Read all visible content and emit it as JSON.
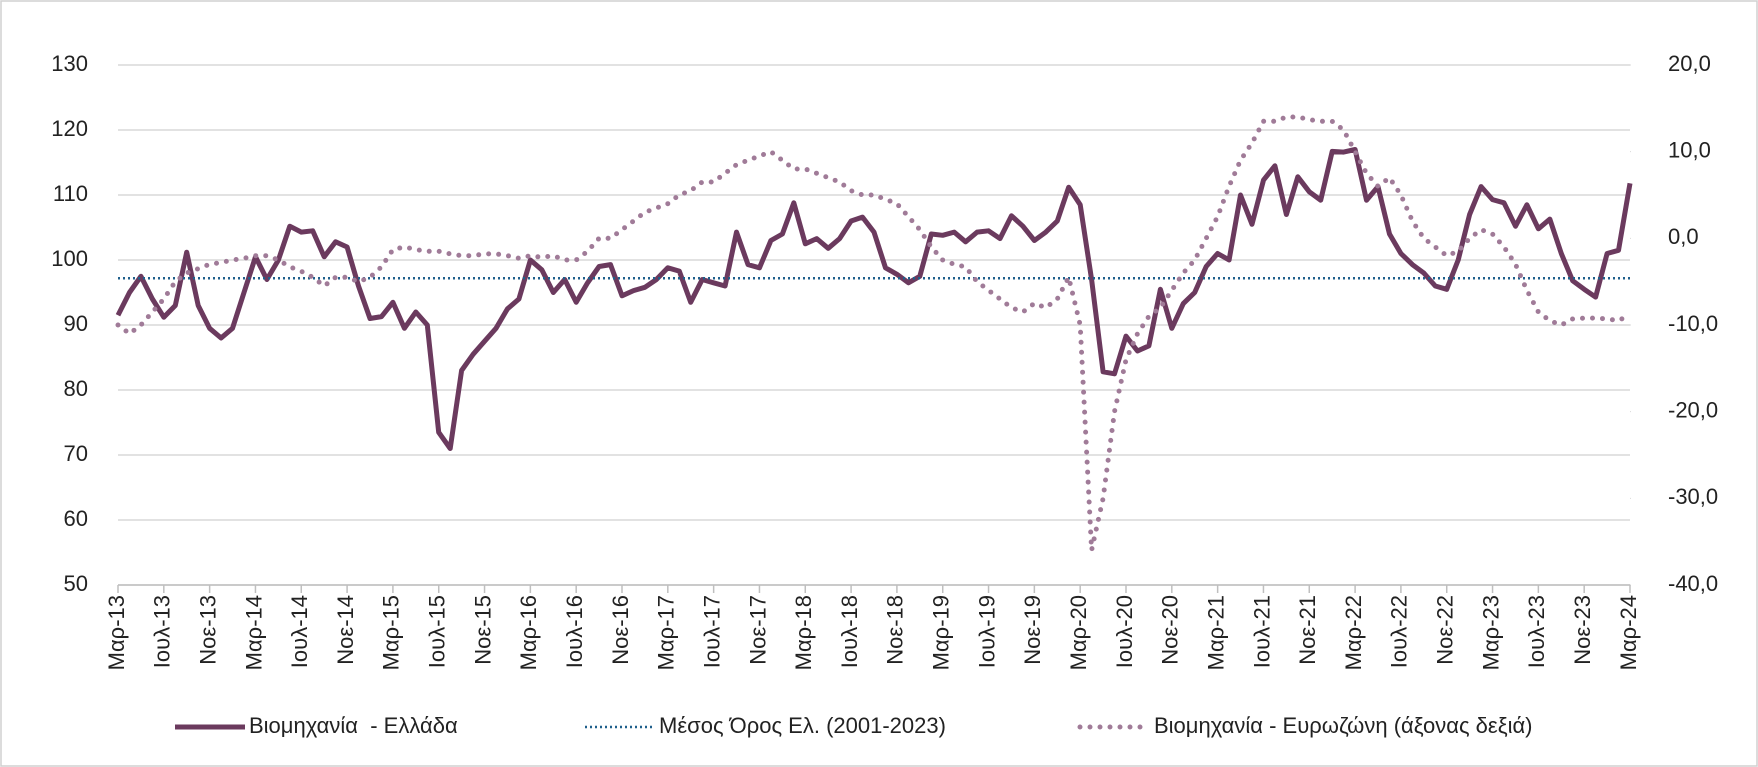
{
  "chart_data": {
    "type": "line",
    "categories": [
      "Μαρ-13",
      null,
      null,
      null,
      "Ιουλ-13",
      null,
      null,
      null,
      "Νοε-13",
      null,
      null,
      null,
      "Μαρ-14",
      null,
      null,
      null,
      "Ιουλ-14",
      null,
      null,
      null,
      "Νοε-14",
      null,
      null,
      null,
      "Μαρ-15",
      null,
      null,
      null,
      "Ιουλ-15",
      null,
      null,
      null,
      "Νοε-15",
      null,
      null,
      null,
      "Μαρ-16",
      null,
      null,
      null,
      "Ιουλ-16",
      null,
      null,
      null,
      "Νοε-16",
      null,
      null,
      null,
      "Μαρ-17",
      null,
      null,
      null,
      "Ιουλ-17",
      null,
      null,
      null,
      "Νοε-17",
      null,
      null,
      null,
      "Μαρ-18",
      null,
      null,
      null,
      "Ιουλ-18",
      null,
      null,
      null,
      "Νοε-18",
      null,
      null,
      null,
      "Μαρ-19",
      null,
      null,
      null,
      "Ιουλ-19",
      null,
      null,
      null,
      "Νοε-19",
      null,
      null,
      null,
      "Μαρ-20",
      null,
      null,
      null,
      "Ιουλ-20",
      null,
      null,
      null,
      "Νοε-20",
      null,
      null,
      null,
      "Μαρ-21",
      null,
      null,
      null,
      "Ιουλ-21",
      null,
      null,
      null,
      "Νοε-21",
      null,
      null,
      null,
      "Μαρ-22",
      null,
      null,
      null,
      "Ιουλ-22",
      null,
      null,
      null,
      "Νοε-22",
      null,
      null,
      null,
      "Μαρ-23",
      null,
      null,
      null,
      "Ιουλ-23",
      null,
      null,
      null,
      "Νοε-23",
      null,
      null,
      null,
      "Μαρ-24"
    ],
    "series": [
      {
        "name": "Βιομηχανία  - Ελλάδα",
        "color": "#6b3a5e",
        "style": "solid",
        "values": [
          91.5,
          95,
          97.5,
          94,
          91.2,
          93,
          101.2,
          93,
          89.5,
          88,
          89.5,
          95,
          100.5,
          97,
          100,
          105.2,
          104.3,
          104.5,
          100.5,
          102.8,
          102,
          96,
          91,
          91.3,
          93.5,
          89.5,
          92,
          90,
          73.5,
          71,
          83,
          85.5,
          87.5,
          89.5,
          92.5,
          94,
          100,
          98.5,
          95,
          97,
          93.5,
          96.5,
          99,
          99.3,
          94.5,
          95.3,
          95.8,
          97,
          98.8,
          98.3,
          93.5,
          97,
          96.5,
          96,
          104.3,
          99.3,
          98.8,
          103,
          104,
          108.8,
          102.5,
          103.3,
          101.8,
          103.3,
          106,
          106.6,
          104.3,
          98.8,
          97.8,
          96.5,
          97.5,
          104,
          103.8,
          104.3,
          102.8,
          104.3,
          104.5,
          103.3,
          106.8,
          105.2,
          103,
          104.3,
          106,
          111.2,
          108.5,
          97,
          82.8,
          82.5,
          88.3,
          86,
          86.8,
          95.5,
          89.5,
          93.3,
          95,
          99,
          101,
          100,
          110,
          105.5,
          112.3,
          114.5,
          107,
          112.8,
          110.5,
          109.2,
          116.7,
          116.6,
          117,
          109.2,
          111.3,
          104,
          101,
          99.3,
          98,
          96,
          95.5,
          100,
          107,
          111.3,
          109.3,
          108.8,
          105.2,
          108.5,
          104.8,
          106.3,
          101,
          96.8,
          95.5,
          94.3,
          101,
          101.5,
          111.8
        ]
      },
      {
        "name": "Μέσος Όρος Ελ. (2001-2023)",
        "color": "#1f5f8b",
        "style": "mean",
        "value": 97.2
      },
      {
        "name": "Βιομηχανία - Ευρωζώνη (άξονας δεξιά)",
        "color": "#a07b98",
        "style": "dotted",
        "axis": "y2",
        "values": [
          -10,
          -11,
          -10,
          -8.5,
          -7,
          -5,
          -4,
          -3.5,
          -3,
          -2.8,
          -2.5,
          -2.3,
          -2,
          -2,
          -2.5,
          -3.3,
          -3.8,
          -4.5,
          -5.5,
          -4.5,
          -4.5,
          -5,
          -4.5,
          -3.3,
          -1.3,
          -1,
          -1.3,
          -1.5,
          -1.5,
          -1.8,
          -2,
          -2,
          -1.8,
          -1.8,
          -2,
          -2.3,
          -2,
          -2.2,
          -2,
          -2.5,
          -2.5,
          -1.5,
          0,
          0,
          1,
          2,
          3,
          3.5,
          4,
          5,
          5.5,
          6.5,
          6.5,
          7.5,
          8.5,
          9,
          9.5,
          10,
          9,
          8,
          8,
          7.5,
          7,
          6.5,
          5.5,
          5,
          5,
          4.5,
          4,
          2.5,
          1,
          -1,
          -2.5,
          -3,
          -3.3,
          -5,
          -6,
          -7,
          -8,
          -8.5,
          -7.5,
          -8,
          -7,
          -4.5,
          -10,
          -36,
          -30,
          -20,
          -14,
          -11,
          -9,
          -8,
          -6,
          -4,
          -2.5,
          0,
          2.5,
          6,
          9,
          11,
          13.5,
          13.5,
          14,
          14,
          13.7,
          13.5,
          13.5,
          12.5,
          10,
          7.5,
          6,
          7,
          5,
          2,
          0,
          -1,
          -2,
          -1.5,
          0,
          1,
          0.5,
          -1,
          -3,
          -6,
          -8.5,
          -9.5,
          -10,
          -9.3,
          -9.2,
          -9.2,
          -9.3,
          -9.5,
          -8.8
        ]
      }
    ],
    "ylim": [
      50,
      130
    ],
    "yticks": [
      50,
      60,
      70,
      80,
      90,
      100,
      110,
      120,
      130
    ],
    "y2lim": [
      -40,
      20
    ],
    "y2ticks": [
      {
        "value": -40,
        "label": "-40,0"
      },
      {
        "value": -30,
        "label": "-30,0"
      },
      {
        "value": -20,
        "label": "-20,0"
      },
      {
        "value": -10,
        "label": "-10,0"
      },
      {
        "value": 0,
        "label": "0,0"
      },
      {
        "value": 10,
        "label": "10,0"
      },
      {
        "value": 20,
        "label": "20,0"
      }
    ],
    "grid": true
  }
}
